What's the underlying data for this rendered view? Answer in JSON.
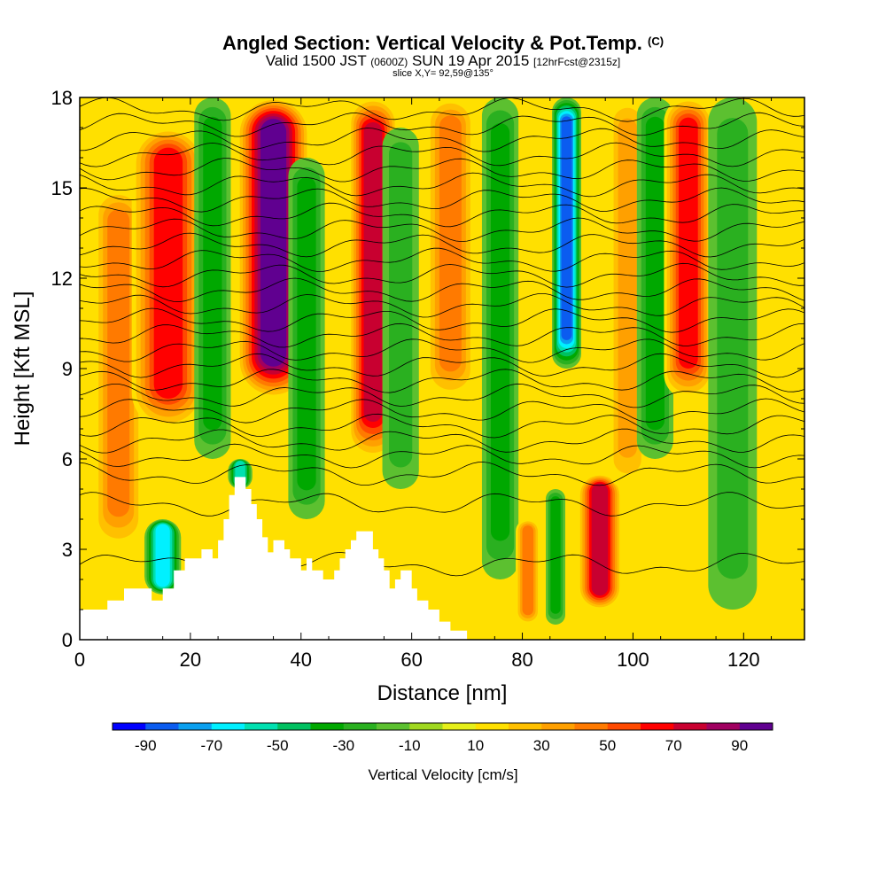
{
  "title": {
    "main": "Angled Section: Vertical Velocity & Pot.Temp.",
    "main_unit": "(C)",
    "valid_prefix": "Valid 1500 JST",
    "valid_zulu": "(0600Z)",
    "valid_date": "SUN 19 Apr 2015",
    "forecast": "[12hrFcst@2315z]",
    "slice": "slice X,Y= 92,59@135°"
  },
  "chart_data": {
    "type": "heatmap",
    "xlabel": "Distance [nm]",
    "ylabel": "Height [Kft MSL]",
    "xlim": [
      0,
      131
    ],
    "ylim": [
      0,
      18
    ],
    "x_ticks": [
      0,
      20,
      40,
      60,
      80,
      100,
      120
    ],
    "y_ticks": [
      0,
      3,
      6,
      9,
      12,
      15,
      18
    ],
    "colorbar": {
      "label": "Vertical Velocity [cm/s]",
      "min": -100,
      "max": 100,
      "step": 10,
      "tick_labels": [
        -90,
        -70,
        -50,
        -30,
        -10,
        10,
        30,
        50,
        70,
        90
      ],
      "colors": [
        "#0000ff",
        "#0b5cf0",
        "#0aa0f0",
        "#00f0ff",
        "#00e0b0",
        "#00c060",
        "#00a800",
        "#2ab020",
        "#5cc030",
        "#a0d820",
        "#e6f01a",
        "#ffe000",
        "#ffc000",
        "#ffa000",
        "#ff7a00",
        "#ff4a00",
        "#ff0000",
        "#c80030",
        "#a00060",
        "#600090"
      ]
    },
    "terrain_profile": [
      [
        0,
        1
      ],
      [
        5,
        1
      ],
      [
        5,
        1.3
      ],
      [
        8,
        1.3
      ],
      [
        8,
        1.7
      ],
      [
        13,
        1.7
      ],
      [
        13,
        1.3
      ],
      [
        15,
        1.3
      ],
      [
        15,
        1.7
      ],
      [
        17,
        1.7
      ],
      [
        17,
        2.3
      ],
      [
        19,
        2.3
      ],
      [
        19,
        2.7
      ],
      [
        22,
        2.7
      ],
      [
        22,
        3.0
      ],
      [
        24,
        3.0
      ],
      [
        24,
        2.7
      ],
      [
        25,
        2.7
      ],
      [
        25,
        3.3
      ],
      [
        26,
        3.3
      ],
      [
        26,
        4.0
      ],
      [
        27,
        4.0
      ],
      [
        27,
        4.8
      ],
      [
        28,
        4.8
      ],
      [
        28,
        5.4
      ],
      [
        30,
        5.4
      ],
      [
        30,
        5.0
      ],
      [
        31,
        5.0
      ],
      [
        31,
        4.5
      ],
      [
        32,
        4.5
      ],
      [
        32,
        4.0
      ],
      [
        33,
        4.0
      ],
      [
        33,
        3.4
      ],
      [
        34,
        3.4
      ],
      [
        34,
        2.9
      ],
      [
        35,
        2.9
      ],
      [
        35,
        3.3
      ],
      [
        37,
        3.3
      ],
      [
        37,
        3.0
      ],
      [
        38,
        3.0
      ],
      [
        38,
        2.7
      ],
      [
        40,
        2.7
      ],
      [
        40,
        2.3
      ],
      [
        41,
        2.3
      ],
      [
        41,
        2.7
      ],
      [
        42,
        2.7
      ],
      [
        42,
        2.3
      ],
      [
        44,
        2.3
      ],
      [
        44,
        2.0
      ],
      [
        46,
        2.0
      ],
      [
        46,
        2.3
      ],
      [
        47,
        2.3
      ],
      [
        47,
        2.7
      ],
      [
        48,
        2.7
      ],
      [
        48,
        3.0
      ],
      [
        49,
        3.0
      ],
      [
        49,
        3.3
      ],
      [
        50,
        3.3
      ],
      [
        50,
        3.6
      ],
      [
        53,
        3.6
      ],
      [
        53,
        3.0
      ],
      [
        54,
        3.0
      ],
      [
        54,
        2.7
      ],
      [
        55,
        2.7
      ],
      [
        55,
        2.3
      ],
      [
        56,
        2.3
      ],
      [
        56,
        1.7
      ],
      [
        57,
        1.7
      ],
      [
        57,
        2.0
      ],
      [
        58,
        2.0
      ],
      [
        58,
        2.3
      ],
      [
        60,
        2.3
      ],
      [
        60,
        1.7
      ],
      [
        61,
        1.7
      ],
      [
        61,
        1.3
      ],
      [
        63,
        1.3
      ],
      [
        63,
        1.0
      ],
      [
        65,
        1.0
      ],
      [
        65,
        0.6
      ],
      [
        67,
        0.6
      ],
      [
        67,
        0.3
      ],
      [
        70,
        0.3
      ],
      [
        70,
        0
      ],
      [
        131,
        0
      ]
    ],
    "vertical_velocity_features": [
      {
        "x": 7,
        "w": 2.0,
        "z_min": 3,
        "z_max": 15,
        "value": 35
      },
      {
        "x": 16,
        "w": 3.0,
        "z_min": 7,
        "z_max": 17,
        "value": 55
      },
      {
        "x": 15,
        "w": 1.5,
        "z_min": 1.5,
        "z_max": 4,
        "value": -60
      },
      {
        "x": 24,
        "w": 1.5,
        "z_min": 6,
        "z_max": 18,
        "value": -25
      },
      {
        "x": 35,
        "w": 3.0,
        "z_min": 8,
        "z_max": 18,
        "value": 90
      },
      {
        "x": 29,
        "w": 1.0,
        "z_min": 5,
        "z_max": 6,
        "value": -50
      },
      {
        "x": 41,
        "w": 1.5,
        "z_min": 4,
        "z_max": 16,
        "value": -25
      },
      {
        "x": 53,
        "w": 2.0,
        "z_min": 6,
        "z_max": 18,
        "value": 70
      },
      {
        "x": 58,
        "w": 1.5,
        "z_min": 5,
        "z_max": 17,
        "value": -15
      },
      {
        "x": 67,
        "w": 2.0,
        "z_min": 8,
        "z_max": 18,
        "value": 40
      },
      {
        "x": 76,
        "w": 1.5,
        "z_min": 2,
        "z_max": 18,
        "value": -25
      },
      {
        "x": 81,
        "w": 1.0,
        "z_min": 0.5,
        "z_max": 4,
        "value": 40
      },
      {
        "x": 88,
        "w": 1.2,
        "z_min": 9,
        "z_max": 18,
        "value": -80
      },
      {
        "x": 86,
        "w": 0.8,
        "z_min": 0.5,
        "z_max": 5,
        "value": -30
      },
      {
        "x": 94,
        "w": 1.8,
        "z_min": 1,
        "z_max": 5.5,
        "value": 70
      },
      {
        "x": 99,
        "w": 1.5,
        "z_min": 5,
        "z_max": 18,
        "value": 25
      },
      {
        "x": 104,
        "w": 1.5,
        "z_min": 6,
        "z_max": 18,
        "value": -25
      },
      {
        "x": 110,
        "w": 2.0,
        "z_min": 8,
        "z_max": 18,
        "value": 60
      },
      {
        "x": 118,
        "w": 2.0,
        "z_min": 1,
        "z_max": 18,
        "value": -15
      }
    ],
    "isentrope_levels_kft": [
      2.5,
      4.5,
      5.5,
      6.1,
      6.6,
      7.1,
      7.6,
      8.1,
      8.6,
      9.1,
      9.6,
      10.1,
      10.6,
      11.1,
      11.6,
      12.1,
      12.6,
      13.1,
      13.6,
      14.1,
      14.6,
      15.1,
      15.6,
      16.1,
      16.6,
      17.1,
      17.6
    ]
  }
}
